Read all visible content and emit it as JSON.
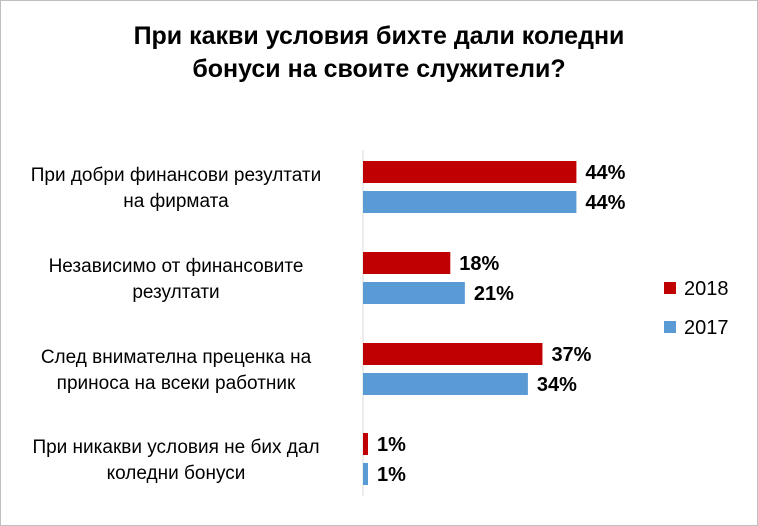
{
  "chart_data": {
    "type": "bar",
    "orientation": "horizontal",
    "title_lines": [
      "При какви условия бихте дали коледни",
      "бонуси на своите служители?"
    ],
    "categories": [
      {
        "lines": [
          "При добри финансови резултати",
          "на фирмата"
        ]
      },
      {
        "lines": [
          "Независимо от финансовите",
          "резултати"
        ]
      },
      {
        "lines": [
          "След внимателна преценка на",
          "приноса на всеки работник"
        ]
      },
      {
        "lines": [
          "При никакви условия не бих дал",
          "коледни бонуси"
        ]
      }
    ],
    "series": [
      {
        "name": "2018",
        "color": "#c00000",
        "values": [
          44,
          18,
          37,
          1
        ],
        "labels": [
          "44%",
          "18%",
          "37%",
          "1%"
        ]
      },
      {
        "name": "2017",
        "color": "#5b9bd5",
        "values": [
          44,
          21,
          34,
          1
        ],
        "labels": [
          "44%",
          "21%",
          "34%",
          "1%"
        ]
      }
    ],
    "xlim": [
      0,
      100
    ],
    "unit": "%",
    "grid": false,
    "legend_position": "right"
  }
}
